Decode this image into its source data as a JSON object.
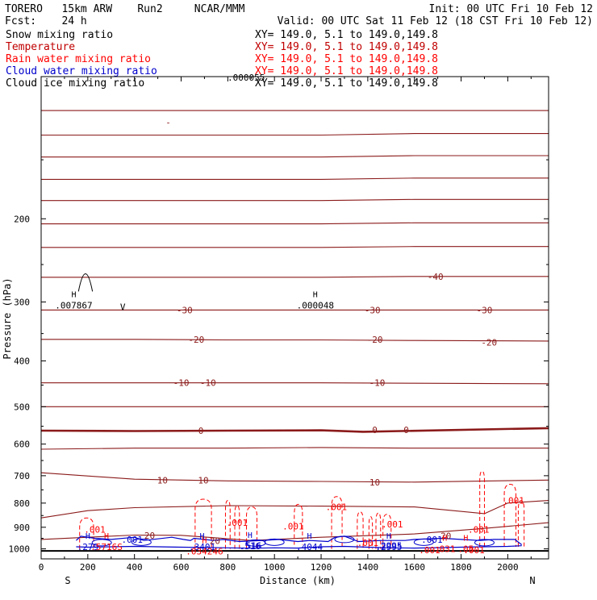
{
  "header": {
    "line1_left": "TORERO   15km ARW    Run2     NCAR/MMM",
    "line1_right": "Init: 00 UTC Fri 10 Feb 12",
    "line2_left": "Fcst:    24 h",
    "line2_right": "Valid: 00 UTC Sat 11 Feb 12 (18 CST Fri 10 Feb 12)"
  },
  "legend": [
    {
      "label": "Snow mixing ratio",
      "xy": "XY= 149.0,  5.1 to 149.0,149.8",
      "color": "#000000",
      "labelColor": "#000000",
      "xyColor": "#000000"
    },
    {
      "label": "Temperature",
      "xy": "XY= 149.0,  5.1 to 149.0,149.8",
      "color": "#c00000",
      "labelColor": "#c00000",
      "xyColor": "#c00000"
    },
    {
      "label": "Rain water mixing ratio",
      "xy": "XY= 149.0,  5.1 to 149.0,149.8",
      "color": "#ff0000",
      "labelColor": "#ff0000",
      "xyColor": "#ff0000"
    },
    {
      "label": "Cloud water mixing ratio",
      "xy": "XY= 149.0,  5.1 to 149.0,149.8",
      "color": "#0000cc",
      "labelColor": "#0000cc",
      "xyColor": "#ff0000"
    },
    {
      "label": "Cloud ice mixing ratio",
      "xy": "XY= 149.0,  5.1 to 149.0,149.8",
      "color": "#000000",
      "labelColor": "#000000",
      "xyColor": "#000000"
    }
  ],
  "colors": {
    "temperature": "#8b1a1a",
    "rain": "#ff0000",
    "cloud_water": "#0000cc",
    "snow": "#000000",
    "frame": "#000000",
    "extrema_label": "#0000cc"
  },
  "chart_data": {
    "type": "line",
    "title": "",
    "xlabel": "Distance (km)",
    "ylabel": "Pressure (hPa)",
    "xlim": [
      0,
      2175
    ],
    "ylim": [
      1050,
      100
    ],
    "y_scale": "log",
    "xticks": [
      0,
      200,
      400,
      600,
      800,
      1000,
      1200,
      1400,
      1600,
      1800,
      2000
    ],
    "yticks": [
      200,
      300,
      400,
      500,
      600,
      700,
      800,
      900,
      1000
    ],
    "x_end_labels": {
      "left": "S",
      "right": "N"
    },
    "grid": false,
    "temperature_labels": [
      {
        "text": "-40",
        "x": 1690,
        "p": 265
      },
      {
        "text": "-30",
        "x": 615,
        "p": 312
      },
      {
        "text": "-30",
        "x": 1420,
        "p": 312
      },
      {
        "text": "-30",
        "x": 1900,
        "p": 312
      },
      {
        "text": "-20",
        "x": 665,
        "p": 360
      },
      {
        "text": "-20",
        "x": 1430,
        "p": 360
      },
      {
        "text": "-20",
        "x": 1920,
        "p": 365
      },
      {
        "text": "-10",
        "x": 600,
        "p": 445
      },
      {
        "text": "-10",
        "x": 715,
        "p": 445
      },
      {
        "text": "-10",
        "x": 1440,
        "p": 445
      },
      {
        "text": "0",
        "x": 685,
        "p": 562
      },
      {
        "text": "0",
        "x": 1430,
        "p": 560
      },
      {
        "text": "0",
        "x": 1565,
        "p": 560
      },
      {
        "text": "10",
        "x": 520,
        "p": 715
      },
      {
        "text": "10",
        "x": 695,
        "p": 715
      },
      {
        "text": "10",
        "x": 1430,
        "p": 722
      },
      {
        "text": "20",
        "x": 465,
        "p": 937
      },
      {
        "text": "20",
        "x": 745,
        "p": 962
      },
      {
        "text": "20",
        "x": 1735,
        "p": 938
      },
      {
        "text": "-",
        "x": 545,
        "p": 125
      }
    ],
    "temperature_isotherms": [
      {
        "p": [
          118,
          118,
          118,
          118,
          118,
          118
        ],
        "x": [
          0,
          400,
          800,
          1200,
          1600,
          2175
        ],
        "bold": false
      },
      {
        "p": [
          133,
          133,
          133,
          133,
          132,
          132
        ],
        "x": [
          0,
          400,
          800,
          1200,
          1600,
          2175
        ],
        "bold": false
      },
      {
        "p": [
          148,
          148,
          148,
          148,
          147,
          147
        ],
        "x": [
          0,
          400,
          800,
          1200,
          1600,
          2175
        ],
        "bold": false
      },
      {
        "p": [
          165,
          165,
          165,
          165,
          164,
          164
        ],
        "x": [
          0,
          400,
          800,
          1200,
          1600,
          2175
        ],
        "bold": false
      },
      {
        "p": [
          183,
          183,
          183,
          183,
          182,
          182
        ],
        "x": [
          0,
          400,
          800,
          1200,
          1600,
          2175
        ],
        "bold": false
      },
      {
        "p": [
          205,
          205,
          205,
          205,
          204,
          204
        ],
        "x": [
          0,
          400,
          800,
          1200,
          1600,
          2175
        ],
        "bold": false
      },
      {
        "p": [
          230,
          230,
          230,
          230,
          229,
          229
        ],
        "x": [
          0,
          400,
          800,
          1200,
          1600,
          2175
        ],
        "bold": false
      },
      {
        "p": [
          266,
          266,
          266,
          266,
          265,
          265
        ],
        "x": [
          0,
          400,
          800,
          1200,
          1600,
          2175
        ],
        "bold": false
      },
      {
        "p": [
          312,
          312,
          312,
          312,
          312,
          312
        ],
        "x": [
          0,
          400,
          800,
          1200,
          1600,
          2175
        ],
        "bold": false
      },
      {
        "p": [
          360,
          360,
          361,
          361,
          362,
          363
        ],
        "x": [
          0,
          400,
          800,
          1200,
          1600,
          2175
        ],
        "bold": false
      },
      {
        "p": [
          445,
          445,
          445,
          445,
          446,
          447
        ],
        "x": [
          0,
          400,
          800,
          1200,
          1600,
          2175
        ],
        "bold": false
      },
      {
        "p": [
          500,
          500,
          500,
          500,
          500,
          500
        ],
        "x": [
          0,
          400,
          800,
          1200,
          1600,
          2175
        ],
        "bold": false
      },
      {
        "p": [
          562,
          563,
          562,
          561,
          565,
          555
        ],
        "x": [
          0,
          400,
          800,
          1200,
          1380,
          2175
        ],
        "bold": true
      },
      {
        "p": [
          615,
          612,
          612,
          610,
          612,
          612
        ],
        "x": [
          0,
          400,
          800,
          1200,
          1600,
          2175
        ],
        "bold": false
      },
      {
        "p": [
          690,
          712,
          718,
          720,
          722,
          715
        ],
        "x": [
          0,
          400,
          800,
          1200,
          1600,
          2175
        ],
        "bold": false
      },
      {
        "p": [
          860,
          830,
          818,
          810,
          812,
          815,
          842,
          800,
          790
        ],
        "x": [
          0,
          200,
          400,
          800,
          1200,
          1600,
          1900,
          2000,
          2175
        ],
        "bold": false
      },
      {
        "p": [
          955,
          945,
          935,
          936,
          960,
          945,
          930,
          905,
          880
        ],
        "x": [
          0,
          200,
          400,
          600,
          900,
          1200,
          1600,
          1900,
          2175
        ],
        "bold": false
      }
    ],
    "rain_labels": [
      {
        "text": ".001",
        "x": 230,
        "p": 910
      },
      {
        "text": ".001",
        "x": 840,
        "p": 880
      },
      {
        "text": ".001",
        "x": 1080,
        "p": 895
      },
      {
        "text": ".001",
        "x": 1265,
        "p": 815
      },
      {
        "text": ".001",
        "x": 1505,
        "p": 887
      },
      {
        "text": ".001",
        "x": 1400,
        "p": 970
      },
      {
        "text": ".001",
        "x": 1875,
        "p": 910
      },
      {
        "text": ".001",
        "x": 2025,
        "p": 790
      },
      {
        "text": ".001",
        "x": 1665,
        "p": 1005
      },
      {
        "text": ".001",
        "x": 1855,
        "p": 1005
      }
    ],
    "rain_columns": [
      {
        "x0": 165,
        "x1": 225,
        "ptop": 860,
        "pbot": 1000
      },
      {
        "x0": 660,
        "x1": 730,
        "ptop": 785,
        "pbot": 1000
      },
      {
        "x0": 790,
        "x1": 810,
        "ptop": 790,
        "pbot": 1000
      },
      {
        "x0": 830,
        "x1": 850,
        "ptop": 810,
        "pbot": 1000
      },
      {
        "x0": 880,
        "x1": 925,
        "ptop": 815,
        "pbot": 1000
      },
      {
        "x0": 1085,
        "x1": 1120,
        "ptop": 805,
        "pbot": 980
      },
      {
        "x0": 1245,
        "x1": 1290,
        "ptop": 775,
        "pbot": 1000
      },
      {
        "x0": 1355,
        "x1": 1380,
        "ptop": 835,
        "pbot": 1000
      },
      {
        "x0": 1405,
        "x1": 1420,
        "ptop": 855,
        "pbot": 1000
      },
      {
        "x0": 1435,
        "x1": 1455,
        "ptop": 840,
        "pbot": 1000
      },
      {
        "x0": 1465,
        "x1": 1500,
        "ptop": 845,
        "pbot": 1000
      },
      {
        "x0": 1880,
        "x1": 1900,
        "ptop": 685,
        "pbot": 990
      },
      {
        "x0": 1985,
        "x1": 2035,
        "ptop": 730,
        "pbot": 990
      },
      {
        "x0": 2045,
        "x1": 2070,
        "ptop": 790,
        "pbot": 990
      }
    ],
    "cloud_labels": [
      {
        "text": ".001",
        "x": 390,
        "p": 955
      },
      {
        "text": ".001",
        "x": 1675,
        "p": 955
      },
      {
        "text": ".516",
        "x": 900,
        "p": 985
      },
      {
        "text": ".2995",
        "x": 1490,
        "p": 985
      }
    ],
    "cloud_outline": [
      {
        "x": [
          150,
          170,
          230,
          300,
          400,
          440,
          560,
          610,
          640,
          655,
          740,
          780,
          850,
          950,
          1020,
          1100,
          1150,
          1230,
          1260,
          1300,
          1360,
          1460,
          1560,
          1600,
          1720,
          1800,
          1880,
          1940,
          2030,
          2060
        ],
        "p": [
          960,
          940,
          950,
          955,
          945,
          960,
          945,
          955,
          960,
          950,
          960,
          955,
          965,
          960,
          955,
          965,
          960,
          965,
          945,
          940,
          965,
          960,
          960,
          955,
          950,
          955,
          960,
          955,
          955,
          980
        ]
      }
    ],
    "cloud_bottom": [
      {
        "x": [
          150,
          200,
          300,
          400,
          500,
          600,
          700,
          800,
          900,
          1000,
          1100,
          1200,
          1300,
          1400,
          1500,
          1600,
          1700,
          1800,
          1900,
          2000,
          2060
        ],
        "p": [
          990,
          992,
          990,
          988,
          990,
          992,
          993,
          995,
          997,
          995,
          996,
          990,
          988,
          992,
          995,
          996,
          994,
          992,
          990,
          988,
          985
        ]
      }
    ],
    "extrema": [
      {
        "mark": "H",
        "text": ".007867",
        "x": 140,
        "p": 300,
        "color": "#000000"
      },
      {
        "mark": "H",
        "text": ".000048",
        "x": 1175,
        "p": 300,
        "color": "#000000"
      },
      {
        "mark": "H",
        "text": ".279",
        "x": 200,
        "p": 975,
        "color": "#0000cc"
      },
      {
        "mark": "H",
        "text": ".5716S",
        "x": 280,
        "p": 975,
        "color": "#ff0000"
      },
      {
        "mark": "H",
        "text": ".3401",
        "x": 690,
        "p": 975,
        "color": "#0000cc"
      },
      {
        "mark": "H",
        "text": ".034246",
        "x": 700,
        "p": 995,
        "color": "#ff0000"
      },
      {
        "mark": "H",
        "text": ".516",
        "x": 895,
        "p": 970,
        "color": "#0000cc"
      },
      {
        "mark": "H",
        "text": ".4044",
        "x": 1150,
        "p": 975,
        "color": "#0000cc"
      },
      {
        "mark": "H",
        "text": ".2995",
        "x": 1490,
        "p": 975,
        "color": "#0000cc"
      },
      {
        "mark": "H",
        "text": ".031",
        "x": 1730,
        "p": 985,
        "color": "#ff0000"
      },
      {
        "mark": "H",
        "text": ".05",
        "x": 1820,
        "p": 985,
        "color": "#ff0000"
      }
    ],
    "snow_cloud_label": ".000055",
    "surface_p": 1010
  }
}
